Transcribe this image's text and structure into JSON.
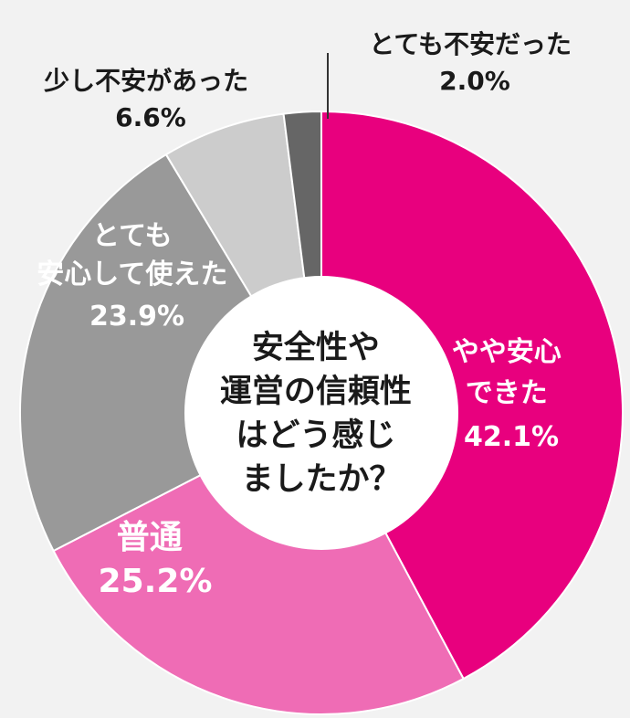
{
  "chart_data": {
    "type": "pie",
    "center_text": [
      "安全性や",
      "運営の信頼性",
      "はどう感じ",
      "ましたか？"
    ],
    "slices": [
      {
        "label": [
          "やや安心",
          "できた"
        ],
        "value": 42.1,
        "value_text": "42.1%",
        "color": "#e8007e"
      },
      {
        "label": [
          "普通"
        ],
        "value": 25.2,
        "value_text": "25.2%",
        "color": "#ef6cb5"
      },
      {
        "label": [
          "とても",
          "安心して使えた"
        ],
        "value": 23.9,
        "value_text": "23.9%",
        "color": "#999999"
      },
      {
        "label": [
          "少し不安があった"
        ],
        "value": 6.6,
        "value_text": "6.6%",
        "color": "#cccccc"
      },
      {
        "label": [
          "とても不安だった"
        ],
        "value": 2.0,
        "value_text": "2.0%",
        "color": "#666666"
      }
    ]
  }
}
